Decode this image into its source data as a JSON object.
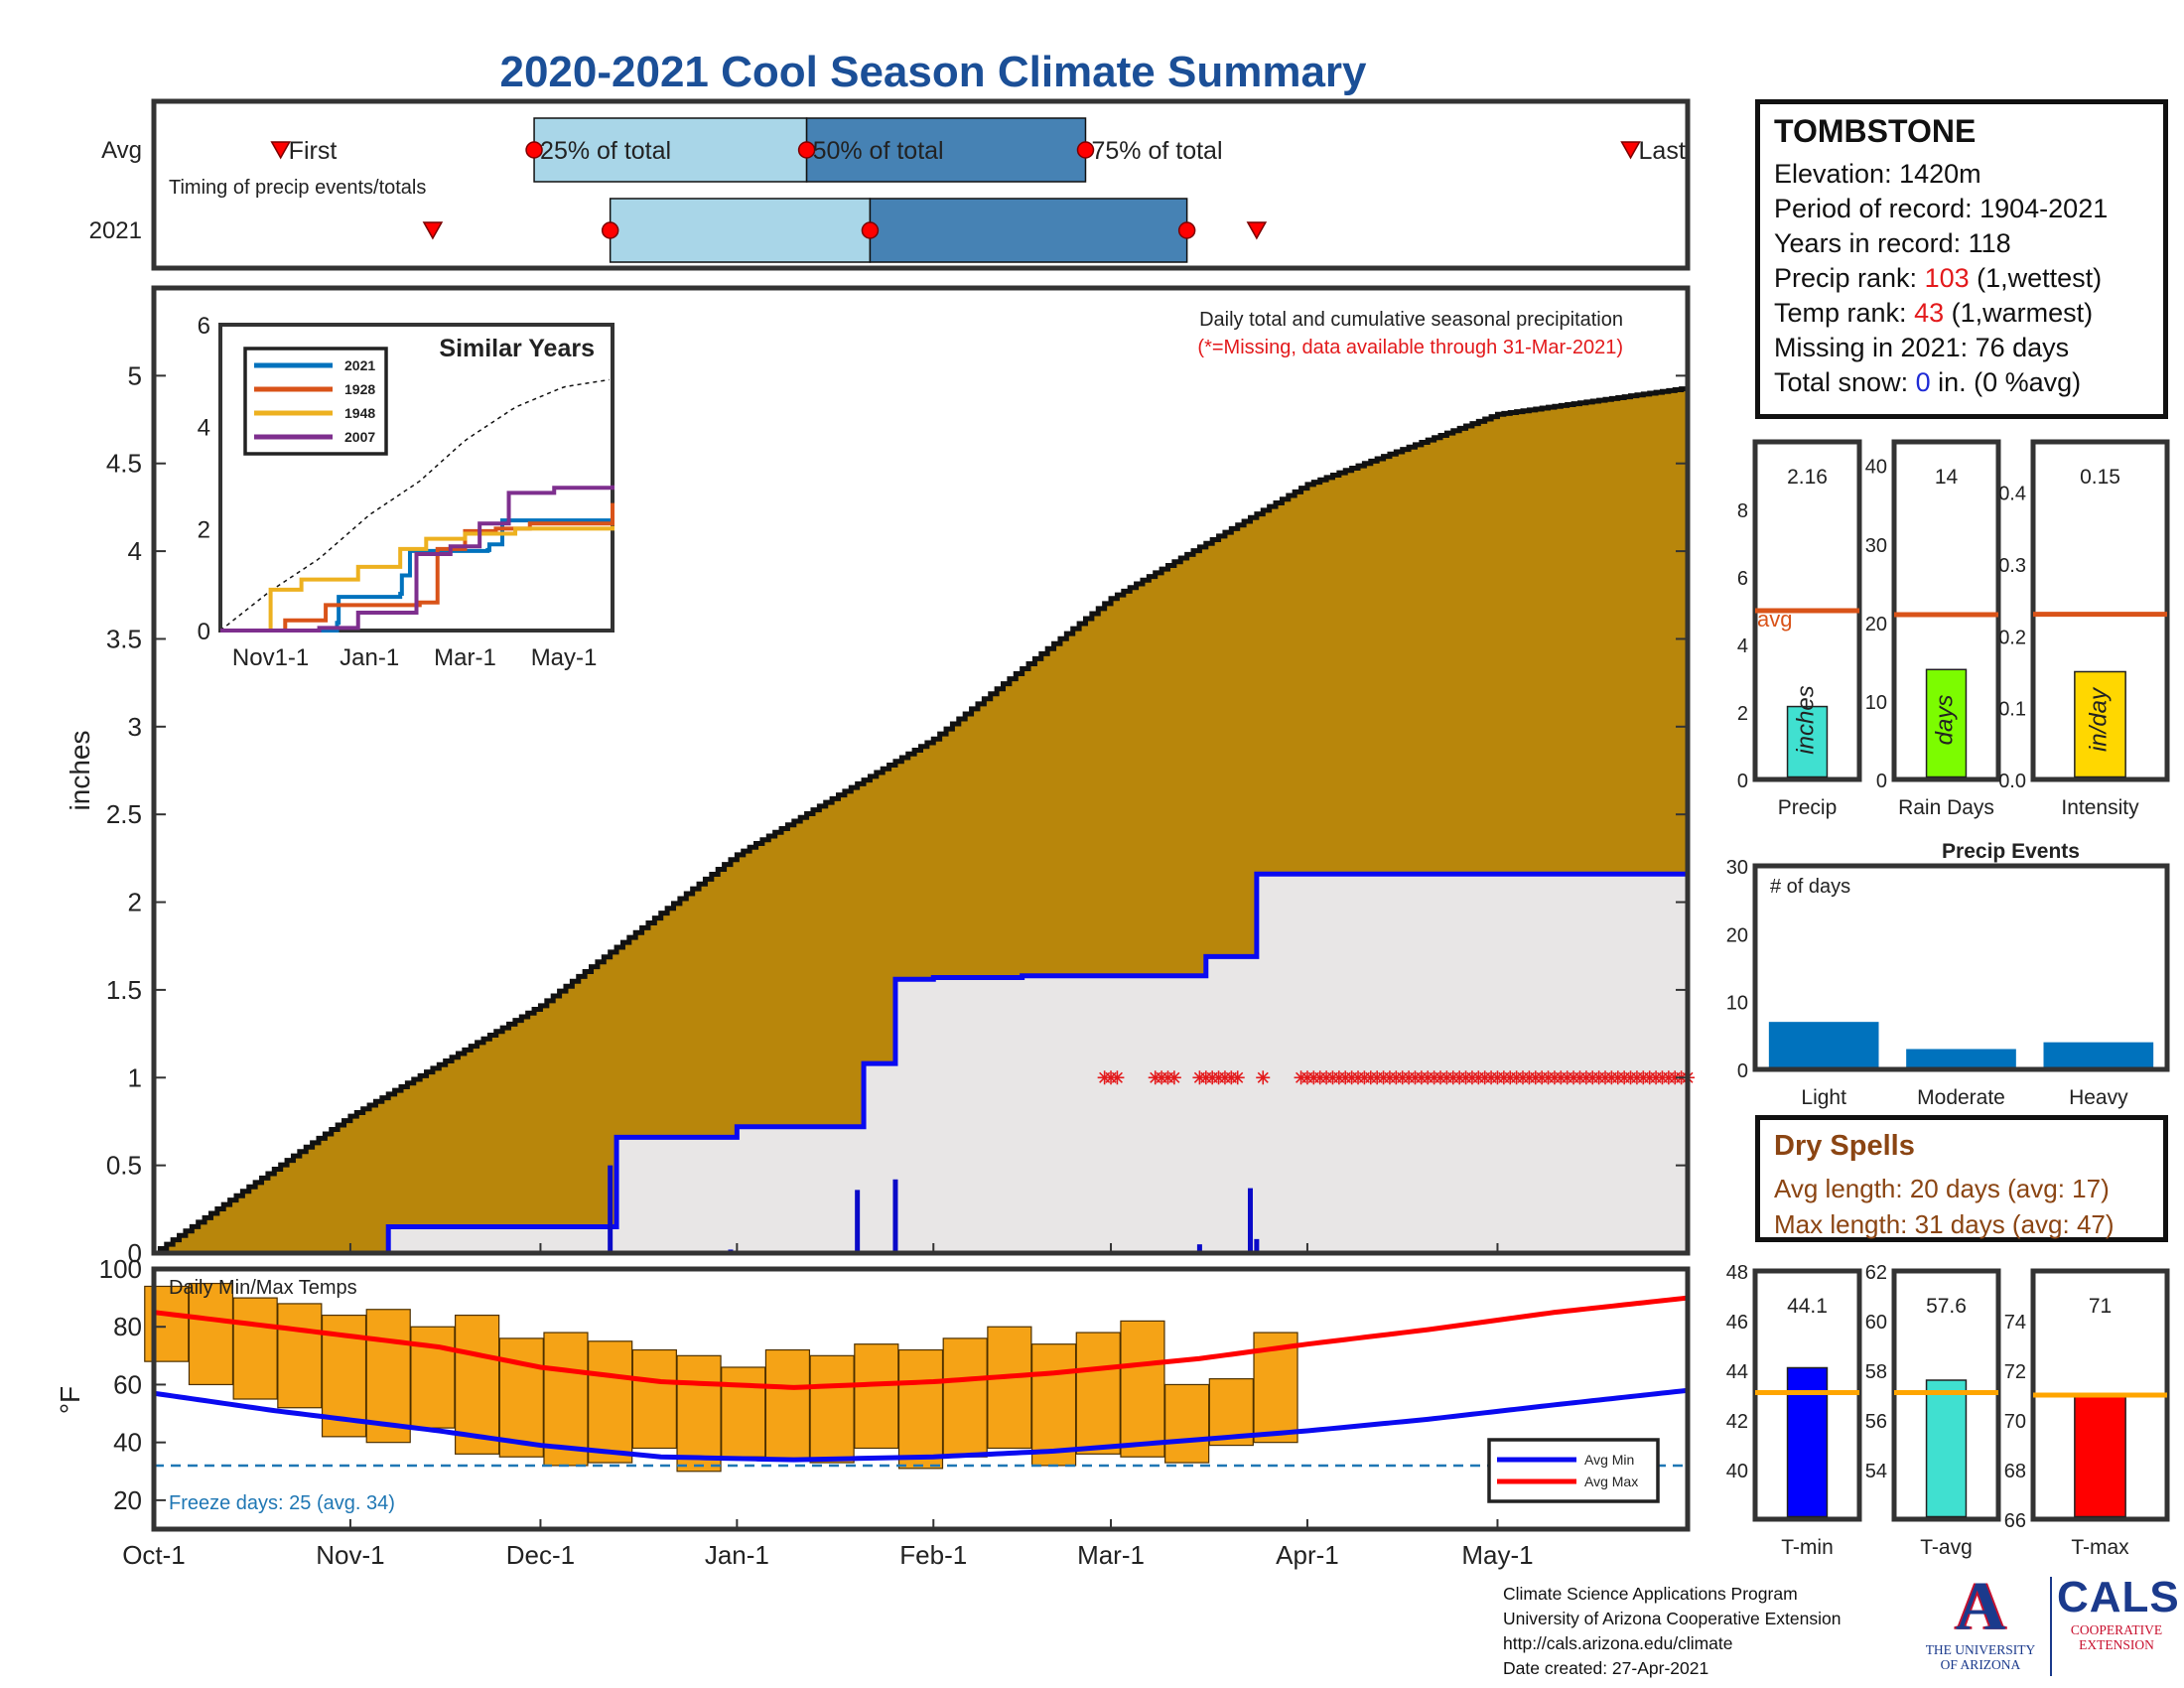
{
  "title": "2020-2021 Cool Season Climate Summary",
  "station": {
    "name": "TOMBSTONE",
    "elevation_label": "Elevation: 1420m",
    "period_label": "Period of record: 1904-2021",
    "years_label": "Years in record: 118",
    "precip_rank_prefix": "Precip rank: ",
    "precip_rank_value": "103",
    "precip_rank_suffix": " (1,wettest)",
    "temp_rank_prefix": "Temp rank: ",
    "temp_rank_value": "43",
    "temp_rank_suffix": " (1,warmest)",
    "missing_label": "Missing in 2021: 76 days",
    "snow_prefix": "Total snow: ",
    "snow_value": "0",
    "snow_suffix": " in. (0 %avg)"
  },
  "dry_spells": {
    "title": "Dry Spells",
    "avg_label": "Avg length: 20 days (avg: 17)",
    "max_label": "Max length: 31 days (avg: 47)"
  },
  "footer": {
    "line1": "Climate Science Applications Program",
    "line2": "University of Arizona Cooperative Extension",
    "line3": "http://cals.arizona.edu/climate",
    "line4": " Date created: 27-Apr-2021"
  },
  "logos": {
    "ua_mark": "A",
    "ua_line1": "THE UNIVERSITY",
    "ua_line2": "OF ARIZONA",
    "cals_word": "CALS",
    "cals_line1": "COOPERATIVE",
    "cals_line2": "EXTENSION"
  },
  "colors": {
    "title_blue": "#1b4f97",
    "cumulative_avg_fill": "#b8860b",
    "season_2021_fill": "#e8e6e6",
    "season_2021_line": "#0a0af0",
    "missing_marker": "#e31a1c",
    "temp_bar": "#f5a316",
    "avg_min_line": "#0a0af0",
    "avg_max_line": "#ff0000",
    "freeze_line": "#1f77b4",
    "q_light": "#a9d6e8",
    "q_dark": "#4682b4",
    "avg_marker_line": "#d95319",
    "precip_bar": "#40e0d0",
    "raindays_bar": "#7cfc00",
    "intensity_bar": "#ffd700",
    "events_bar": "#0072bd",
    "tmin_bar": "#0000ff",
    "tavg_bar": "#40e0d0",
    "tmax_bar": "#ff0000",
    "temp_avg_line": "#ffa500",
    "dry_spell_text": "#8b4513"
  },
  "chart_data": [
    {
      "id": "timing",
      "type": "timing-boxplot",
      "rows": [
        "Avg",
        "2021"
      ],
      "note": "Timing of precip events/totals",
      "labels": {
        "first": "First",
        "q25": "25% of total",
        "q50": "50% of total",
        "q75": "75% of total",
        "last": "Last"
      },
      "avg": {
        "first": "2020-10-21",
        "q25": "2020-11-30",
        "q50": "2021-01-12",
        "q75": "2021-02-25",
        "last": "2021-05-22"
      },
      "y2021": {
        "first": "2020-11-14",
        "q25": "2020-12-12",
        "q50": "2021-01-22",
        "q75": "2021-03-13",
        "last": "2021-03-24"
      }
    },
    {
      "id": "precip",
      "type": "area",
      "title": "Daily total and cumulative seasonal precipitation",
      "subtitle": "(*=Missing, data available through 31-Mar-2021)",
      "ylabel": "inches",
      "ylim": [
        0,
        5.5
      ],
      "yticks": [
        0,
        0.5,
        1,
        1.5,
        2,
        2.5,
        3,
        3.5,
        4,
        4.5,
        5
      ],
      "xlim": [
        "2020-10-01",
        "2021-05-31"
      ],
      "xticks": [
        "Oct-1",
        "Nov-1",
        "Dec-1",
        "Jan-1",
        "Feb-1",
        "Mar-1",
        "Apr-1",
        "May-1"
      ],
      "xtick_dates": [
        "2020-10-01",
        "2020-11-01",
        "2020-12-01",
        "2021-01-01",
        "2021-02-01",
        "2021-03-01",
        "2021-04-01",
        "2021-05-01"
      ],
      "avg_cumulative": {
        "dates": [
          "2020-10-01",
          "2020-11-01",
          "2020-12-01",
          "2021-01-01",
          "2021-02-01",
          "2021-03-01",
          "2021-04-01",
          "2021-05-01",
          "2021-05-31"
        ],
        "values": [
          0,
          0.78,
          1.41,
          2.27,
          2.93,
          3.73,
          4.38,
          4.78,
          4.93
        ]
      },
      "cumulative_2021": {
        "dates": [
          "2020-10-01",
          "2020-11-07",
          "2020-12-12",
          "2020-12-13",
          "2020-12-31",
          "2021-01-01",
          "2021-01-20",
          "2021-01-21",
          "2021-01-25",
          "2021-01-26",
          "2021-02-01",
          "2021-02-15",
          "2021-03-15",
          "2021-03-16",
          "2021-03-23",
          "2021-03-24",
          "2021-05-31"
        ],
        "values": [
          0,
          0.15,
          0.15,
          0.66,
          0.66,
          0.72,
          0.72,
          1.08,
          1.08,
          1.56,
          1.57,
          1.58,
          1.58,
          1.69,
          1.69,
          2.16,
          2.16
        ]
      },
      "daily_2021": {
        "dates": [
          "2020-12-12",
          "2020-12-31",
          "2021-01-20",
          "2021-01-26",
          "2021-03-15",
          "2021-03-23",
          "2021-03-24"
        ],
        "values": [
          0.5,
          0.02,
          0.36,
          0.42,
          0.05,
          0.37,
          0.08
        ]
      },
      "missing_dates": [
        "2021-02-28",
        "2021-03-01",
        "2021-03-02",
        "2021-03-08",
        "2021-03-09",
        "2021-03-10",
        "2021-03-11",
        "2021-03-15",
        "2021-03-16",
        "2021-03-17",
        "2021-03-18",
        "2021-03-19",
        "2021-03-20",
        "2021-03-21",
        "2021-03-25"
      ],
      "missing_start": "2021-03-31",
      "missing_end": "2021-05-31",
      "missing_level": 1
    },
    {
      "id": "similar_years",
      "type": "line",
      "title": "Similar Years",
      "ylim": [
        0,
        6
      ],
      "yticks": [
        0,
        2,
        4,
        6
      ],
      "xticks": [
        "Nov1-1",
        "Jan-1",
        "Mar-1",
        "May-1"
      ],
      "xtick_dates": [
        "2020-11-01",
        "2021-01-01",
        "2021-03-01",
        "2021-05-01"
      ],
      "xlim": [
        "2020-10-01",
        "2021-05-31"
      ],
      "avg_dates": [
        "2020-10-01",
        "2020-11-01",
        "2020-12-01",
        "2021-01-01",
        "2021-02-01",
        "2021-03-01",
        "2021-04-01",
        "2021-05-01",
        "2021-05-31"
      ],
      "avg_values": [
        0,
        0.78,
        1.41,
        2.27,
        2.93,
        3.73,
        4.38,
        4.78,
        4.93
      ],
      "series": [
        {
          "name": "2021",
          "color": "#0072bd",
          "dates": [
            "2020-10-01",
            "2020-12-12",
            "2020-12-13",
            "2021-01-20",
            "2021-01-21",
            "2021-01-26",
            "2021-03-15",
            "2021-03-16",
            "2021-03-24",
            "2021-05-31"
          ],
          "values": [
            0,
            0.15,
            0.66,
            0.72,
            1.08,
            1.56,
            1.58,
            1.69,
            2.16,
            2.16
          ]
        },
        {
          "name": "1928",
          "color": "#d95319",
          "dates": [
            "2020-10-01",
            "2020-11-10",
            "2020-12-05",
            "2021-01-10",
            "2021-02-01",
            "2021-02-12",
            "2021-03-01",
            "2021-03-20",
            "2021-04-10",
            "2021-05-31"
          ],
          "values": [
            0,
            0.2,
            0.5,
            0.5,
            0.55,
            1.6,
            1.95,
            2.0,
            2.1,
            2.5
          ]
        },
        {
          "name": "1948",
          "color": "#edb120",
          "dates": [
            "2020-10-01",
            "2020-11-01",
            "2020-11-20",
            "2020-12-25",
            "2021-01-20",
            "2021-02-05",
            "2021-03-01",
            "2021-04-01",
            "2021-05-31"
          ],
          "values": [
            0,
            0.8,
            1.0,
            1.25,
            1.6,
            1.8,
            1.9,
            2.0,
            2.05
          ]
        },
        {
          "name": "2007",
          "color": "#7e2f8e",
          "dates": [
            "2020-10-01",
            "2020-12-01",
            "2020-12-25",
            "2021-01-30",
            "2021-02-20",
            "2021-03-10",
            "2021-03-28",
            "2021-04-25",
            "2021-05-31"
          ],
          "values": [
            0,
            0.05,
            0.35,
            1.5,
            1.65,
            2.1,
            2.7,
            2.8,
            2.85
          ]
        }
      ]
    },
    {
      "id": "temps",
      "type": "range-bar",
      "title": "Daily Min/Max Temps",
      "ylabel": "°F",
      "ylim": [
        10,
        100
      ],
      "yticks": [
        20,
        40,
        60,
        80,
        100
      ],
      "freeze_line": 32,
      "freeze_label": "Freeze days: 25 (avg. 34)",
      "legend": [
        "Avg Min",
        "Avg Max"
      ],
      "avg_max_dates": [
        "2020-10-01",
        "2020-10-20",
        "2020-11-15",
        "2020-12-01",
        "2020-12-20",
        "2021-01-10",
        "2021-02-01",
        "2021-02-20",
        "2021-03-15",
        "2021-04-01",
        "2021-04-20",
        "2021-05-10",
        "2021-05-31"
      ],
      "avg_max_values": [
        85,
        80,
        73,
        66,
        61,
        59,
        61,
        64,
        69,
        74,
        79,
        85,
        90
      ],
      "avg_min_dates": [
        "2020-10-01",
        "2020-10-20",
        "2020-11-15",
        "2020-12-01",
        "2020-12-20",
        "2021-01-10",
        "2021-02-01",
        "2021-02-20",
        "2021-03-15",
        "2021-04-01",
        "2021-04-20",
        "2021-05-10",
        "2021-05-31"
      ],
      "avg_min_values": [
        57,
        51,
        44,
        39,
        35,
        34,
        35,
        37,
        41,
        44,
        48,
        53,
        58
      ],
      "daily_range_dates": [
        "2020-10-03",
        "2020-10-10",
        "2020-10-17",
        "2020-10-24",
        "2020-10-31",
        "2020-11-07",
        "2020-11-14",
        "2020-11-21",
        "2020-11-28",
        "2020-12-05",
        "2020-12-12",
        "2020-12-19",
        "2020-12-26",
        "2021-01-02",
        "2021-01-09",
        "2021-01-16",
        "2021-01-23",
        "2021-01-30",
        "2021-02-06",
        "2021-02-13",
        "2021-02-20",
        "2021-02-27",
        "2021-03-06",
        "2021-03-13",
        "2021-03-20",
        "2021-03-27"
      ],
      "daily_min_values": [
        68,
        60,
        55,
        52,
        42,
        40,
        45,
        36,
        35,
        32,
        33,
        38,
        30,
        35,
        34,
        33,
        38,
        31,
        35,
        38,
        32,
        36,
        35,
        33,
        39,
        40
      ],
      "daily_max_values": [
        94,
        95,
        90,
        88,
        84,
        86,
        80,
        84,
        76,
        78,
        75,
        72,
        70,
        66,
        72,
        70,
        74,
        72,
        76,
        80,
        74,
        78,
        82,
        60,
        62,
        78
      ]
    },
    {
      "id": "precip_gauge",
      "type": "bar",
      "xlabel": "Precip",
      "unit_label": "inches",
      "value": 2.16,
      "value_label": "2.16",
      "avg": 5.0,
      "avg_label": "avg",
      "ylim": [
        0,
        10
      ],
      "yticks": [
        0,
        2,
        4,
        6,
        8
      ]
    },
    {
      "id": "raindays_gauge",
      "type": "bar",
      "xlabel": "Rain Days",
      "unit_label": "days",
      "value": 14,
      "value_label": "14",
      "avg": 21,
      "ylim": [
        0,
        43
      ],
      "yticks": [
        0,
        10,
        20,
        30,
        40
      ]
    },
    {
      "id": "intensity_gauge",
      "type": "bar",
      "xlabel": "Intensity",
      "unit_label": "in/day",
      "value": 0.15,
      "value_label": "0.15",
      "avg": 0.23,
      "ylim": [
        0,
        0.47
      ],
      "yticks": [
        0,
        0.1,
        0.2,
        0.3,
        0.4
      ]
    },
    {
      "id": "precip_events",
      "type": "bar",
      "title": "Precip Events",
      "ylabel_note": "# of days",
      "categories": [
        "Light",
        "Moderate",
        "Heavy"
      ],
      "values": [
        7,
        3,
        4
      ],
      "ylim": [
        0,
        30
      ],
      "yticks": [
        0,
        10,
        20,
        30
      ]
    },
    {
      "id": "tmin_gauge",
      "type": "bar",
      "xlabel": "T-min",
      "value": 44.1,
      "value_label": "44.1",
      "avg": 43.1,
      "ylim": [
        38,
        48
      ],
      "yticks": [
        40,
        42,
        44,
        46,
        48
      ]
    },
    {
      "id": "tavg_gauge",
      "type": "bar",
      "xlabel": "T-avg",
      "value": 57.6,
      "value_label": "57.6",
      "avg": 57.1,
      "ylim": [
        52,
        62
      ],
      "yticks": [
        54,
        56,
        58,
        60,
        62
      ]
    },
    {
      "id": "tmax_gauge",
      "type": "bar",
      "xlabel": "T-max",
      "value": 71,
      "value_label": "71",
      "avg": 71,
      "ylim": [
        66,
        76
      ],
      "yticks": [
        66,
        68,
        70,
        72,
        74
      ]
    }
  ]
}
